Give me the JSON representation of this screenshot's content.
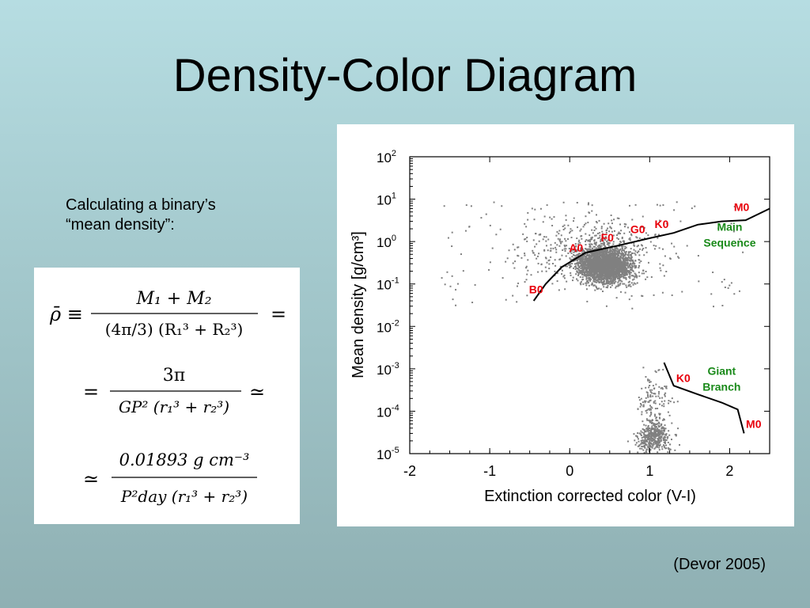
{
  "slide": {
    "title": "Density-Color Diagram",
    "intro_line1": "Calculating a binary’s",
    "intro_line2": "“mean density”:",
    "citation": "(Devor 2005)"
  },
  "equations": {
    "line1_lhs": "ρ̄ ≡",
    "line1_num": "M₁ + M₂",
    "line1_den": "(4π/3) (R₁³ + R₂³)",
    "line1_rel": "=",
    "line2_lhs": "=",
    "line2_num": "3π",
    "line2_den": "GP² (r₁³ + r₂³)",
    "line2_rel": "≃",
    "line3_lhs": "≃",
    "line3_num": "0.01893 g cm⁻³",
    "line3_den": "P²day (r₁³ + r₂³)"
  },
  "chart_data": {
    "type": "scatter",
    "xlabel": "Extinction corrected color (V-I)",
    "ylabel": "Mean density [g/cm³]",
    "xlim": [
      -2,
      2.5
    ],
    "ylim": [
      1e-05,
      100
    ],
    "y_scale": "log",
    "x_ticks": [
      "-2",
      "-1",
      "0",
      "1",
      "2"
    ],
    "y_ticks": [
      {
        "base": "10",
        "exp": "2"
      },
      {
        "base": "10",
        "exp": "1"
      },
      {
        "base": "10",
        "exp": "0"
      },
      {
        "base": "10",
        "exp": "-1"
      },
      {
        "base": "10",
        "exp": "-2"
      },
      {
        "base": "10",
        "exp": "-3"
      },
      {
        "base": "10",
        "exp": "-4"
      },
      {
        "base": "10",
        "exp": "-5"
      }
    ],
    "point_color": "#808080",
    "line_color": "#000000",
    "label_color_spectral": "#e8000b",
    "label_color_region": "#1a8a1a",
    "main_sequence": {
      "label_line1": "Main",
      "label_line2": "Sequence",
      "x": [
        -0.45,
        -0.3,
        -0.1,
        0.2,
        0.6,
        1.0,
        1.3,
        1.6,
        1.9,
        2.2,
        2.5
      ],
      "y": [
        0.04,
        0.1,
        0.25,
        0.55,
        0.8,
        1.2,
        1.6,
        2.5,
        3.0,
        3.2,
        6.0
      ]
    },
    "giant_branch": {
      "label_line1": "Giant",
      "label_line2": "Branch",
      "x": [
        1.18,
        1.3,
        1.6,
        1.9,
        2.1,
        2.18
      ],
      "y": [
        0.0014,
        0.0004,
        0.00025,
        0.00016,
        0.00011,
        3e-05
      ]
    },
    "spectral_labels": [
      {
        "text": "B0",
        "x": -0.42,
        "y": 0.075
      },
      {
        "text": "A0",
        "x": 0.08,
        "y": 0.72
      },
      {
        "text": "F0",
        "x": 0.47,
        "y": 1.25
      },
      {
        "text": "G0",
        "x": 0.85,
        "y": 1.95
      },
      {
        "text": "K0",
        "x": 1.15,
        "y": 2.6
      },
      {
        "text": "M0",
        "x": 2.15,
        "y": 6.5
      },
      {
        "text": "K0",
        "x": 1.42,
        "y": 0.0006
      },
      {
        "text": "M0",
        "x": 2.3,
        "y": 5e-05
      }
    ],
    "region_labels": [
      {
        "key": "main_sequence",
        "x": 2.0,
        "y": 1.5
      },
      {
        "key": "giant_branch",
        "x": 1.9,
        "y": 0.0006
      }
    ]
  }
}
